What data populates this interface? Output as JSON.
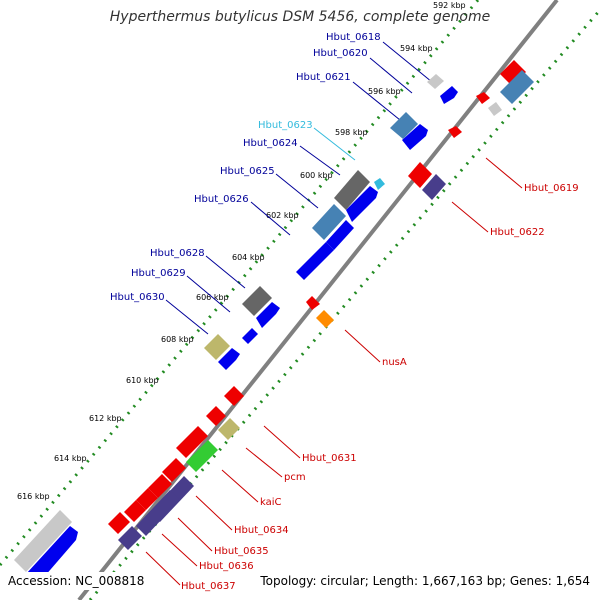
{
  "title": "Hyperthermus butylicus DSM 5456, complete genome",
  "accession": "Accession: NC_008818",
  "topology": "Topology: circular; Length: 1,667,163 bp; Genes: 1,654",
  "colors": {
    "backbone": "#808080",
    "tick_dots": "#228B22",
    "cds": "#0000EE",
    "steelblue": "#4682B4",
    "gray": "#666666",
    "lightgray": "#C8C8C8",
    "khaki": "#BDB76B",
    "green": "#33CC33",
    "orange": "#FF8C00",
    "red": "#EE0000",
    "slate": "#483D8B",
    "label_blue": "#000099",
    "label_cyan": "#33BBDD",
    "label_red": "#CC0000"
  },
  "ticks": [
    "592 kbp",
    "594 kbp",
    "596 kbp",
    "598 kbp",
    "600 kbp",
    "602 kbp",
    "604 kbp",
    "606 kbp",
    "608 kbp",
    "610 kbp",
    "612 kbp",
    "614 kbp",
    "616 kbp"
  ],
  "gene_labels": [
    "Hbut_0618",
    "Hbut_0620",
    "Hbut_0621",
    "Hbut_0623",
    "Hbut_0624",
    "Hbut_0625",
    "Hbut_0626",
    "Hbut_0628",
    "Hbut_0629",
    "Hbut_0630",
    "Hbut_0619",
    "Hbut_0622",
    "nusA",
    "Hbut_0631",
    "pcm",
    "kaiC",
    "Hbut_0634",
    "Hbut_0635",
    "Hbut_0636",
    "Hbut_0637"
  ]
}
